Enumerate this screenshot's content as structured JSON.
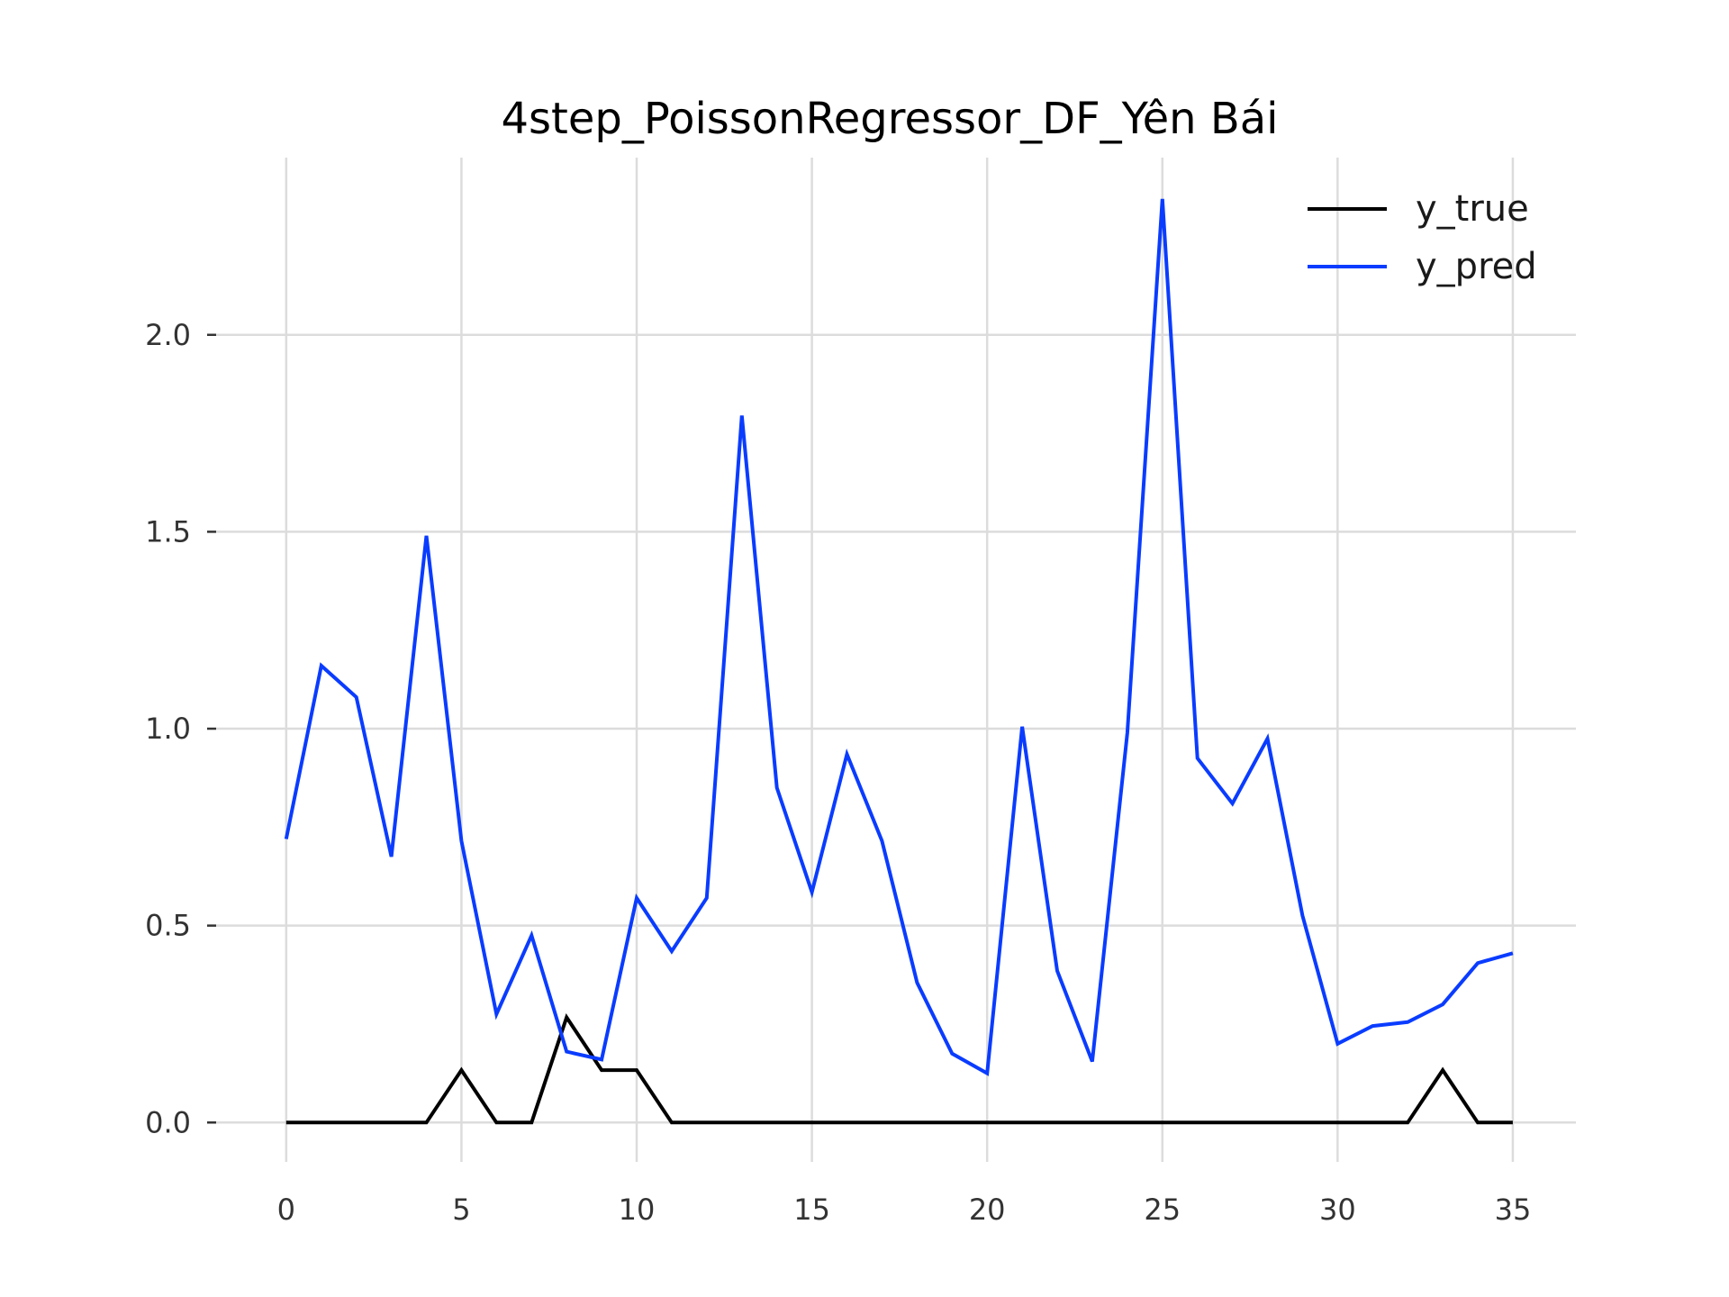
{
  "chart_data": {
    "type": "line",
    "title": "4step_PoissonRegressor_DF_Yên Bái",
    "xlabel": "",
    "ylabel": "",
    "xlim": [
      -2,
      36.8
    ],
    "ylim": [
      -0.1,
      2.45
    ],
    "xticks": [
      0,
      5,
      10,
      15,
      20,
      25,
      30,
      35
    ],
    "yticks": [
      0.0,
      0.5,
      1.0,
      1.5,
      2.0
    ],
    "xtick_labels": [
      "0",
      "5",
      "10",
      "15",
      "20",
      "25",
      "30",
      "35"
    ],
    "ytick_labels": [
      "0.0",
      "0.5",
      "1.0",
      "1.5",
      "2.0"
    ],
    "grid": true,
    "legend_position": "top-right",
    "x": [
      0,
      1,
      2,
      3,
      4,
      5,
      6,
      7,
      8,
      9,
      10,
      11,
      12,
      13,
      14,
      15,
      16,
      17,
      18,
      19,
      20,
      21,
      22,
      23,
      24,
      25,
      26,
      27,
      28,
      29,
      30,
      31,
      32,
      33,
      34,
      35
    ],
    "series": [
      {
        "name": "y_true",
        "color": "#000000",
        "values": [
          0,
          0,
          0,
          0,
          0,
          0.133,
          0,
          0,
          0.267,
          0.133,
          0.133,
          0,
          0,
          0,
          0,
          0,
          0,
          0,
          0,
          0,
          0,
          0,
          0,
          0,
          0,
          0,
          0,
          0,
          0,
          0,
          0,
          0,
          0,
          0.133,
          0,
          0
        ]
      },
      {
        "name": "y_pred",
        "color": "#0a3cff",
        "values": [
          0.72,
          1.16,
          1.08,
          0.675,
          1.49,
          0.715,
          0.275,
          0.475,
          0.18,
          0.16,
          0.57,
          0.435,
          0.57,
          1.795,
          0.85,
          0.585,
          0.935,
          0.715,
          0.355,
          0.175,
          0.125,
          1.005,
          0.385,
          0.155,
          0.99,
          2.345,
          0.925,
          0.81,
          0.975,
          0.525,
          0.2,
          0.245,
          0.255,
          0.3,
          0.405,
          0.43
        ]
      }
    ]
  }
}
